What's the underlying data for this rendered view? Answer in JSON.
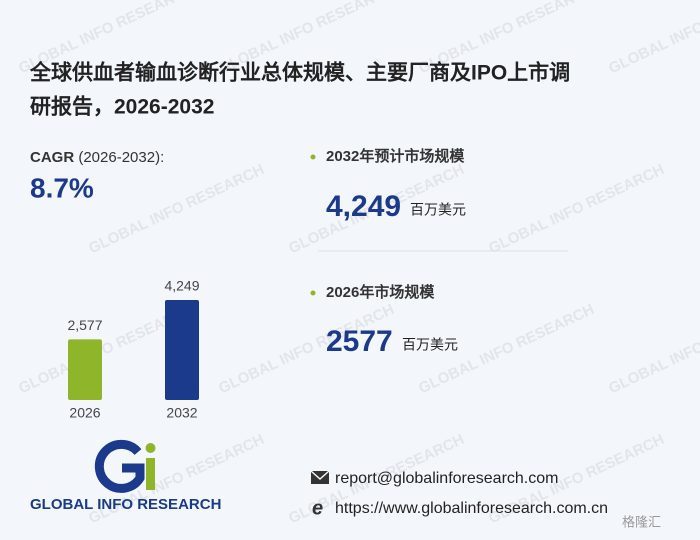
{
  "title_line1": "全球供血者输血诊断行业总体规模、主要厂商及IPO上市调",
  "title_line2": "研报告，2026-2032",
  "cagr": {
    "label": "CAGR",
    "period": "(2026-2032):",
    "value": "8.7%"
  },
  "stats": [
    {
      "label": "2032年预计市场规模",
      "value": "4,249",
      "unit": "百万美元"
    },
    {
      "label": "2026年市场规模",
      "value": "2577",
      "unit": "百万美元"
    }
  ],
  "chart_data": {
    "type": "bar",
    "categories": [
      "2026",
      "2032"
    ],
    "values": [
      2577,
      4249
    ],
    "value_labels": [
      "2,577",
      "4,249"
    ],
    "colors": [
      "#8fb52a",
      "#1b3a8c"
    ]
  },
  "logo": {
    "text": "GLOBAL INFO RESEARCH"
  },
  "contact": {
    "email": "report@globalinforesearch.com",
    "website": "https://www.globalinforesearch.com.cn"
  },
  "watermark": "GLOBAL INFO RESEARCH",
  "corner_mark": "格隆汇"
}
